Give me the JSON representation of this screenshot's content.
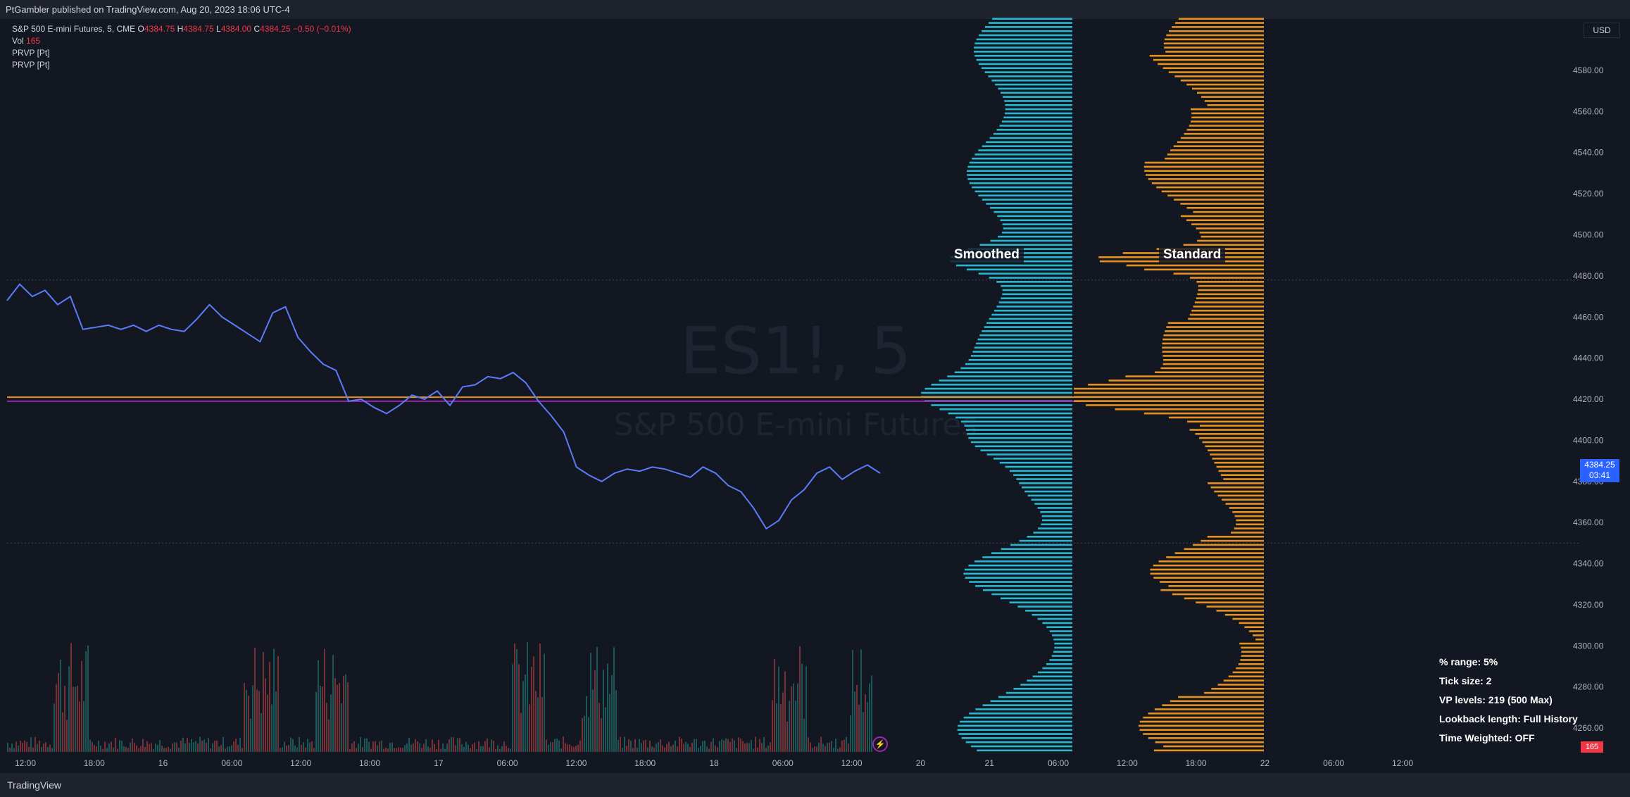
{
  "header": {
    "publisher_text": "PtGambler published on TradingView.com, Aug 20, 2023 18:06 UTC-4"
  },
  "legend": {
    "symbol_line": "S&P 500 E-mini Futures, 5, CME",
    "open_label": "O",
    "open": "4384.75",
    "high_label": "H",
    "high": "4384.75",
    "low_label": "L",
    "low": "4384.00",
    "close_label": "C",
    "close": "4384.25",
    "change": "−0.50 (−0.01%)",
    "vol_label": "Vol",
    "vol_value": "165",
    "indicator_1": "PRVP [Pt]",
    "indicator_2": "PRVP [Pt]"
  },
  "currency": "USD",
  "price_tag": {
    "price": "4384.25",
    "countdown": "03:41"
  },
  "volume_tag": "165",
  "watermark": {
    "ticker": "ES1!, 5",
    "name": "S&P 500 E-mini Futures"
  },
  "settings_box": {
    "range": "% range: 5%",
    "tick": "Tick size: 2",
    "levels": "VP levels: 219 (500 Max)",
    "lookback": "Lookback length: Full History",
    "time_weighted": "Time Weighted: OFF"
  },
  "branding": "TradingView",
  "colors": {
    "background": "#131722",
    "smoothed": "#29b6cf",
    "standard": "#e6901f",
    "price_line": "#5b7cfa",
    "poc_line": "#e6901f",
    "value_line": "#9c27b0"
  },
  "chart_data": {
    "type": "line",
    "title": "",
    "y_axis": {
      "ticks": [
        4260,
        4280,
        4300,
        4320,
        4340,
        4360,
        4380,
        4400,
        4420,
        4440,
        4460,
        4480,
        4500,
        4520,
        4540,
        4560,
        4580
      ],
      "range": [
        4247,
        4605
      ],
      "position": "right"
    },
    "x_axis": {
      "tick_labels": [
        "12:00",
        "18:00",
        "16",
        "06:00",
        "12:00",
        "18:00",
        "17",
        "06:00",
        "12:00",
        "18:00",
        "18",
        "06:00",
        "12:00",
        "20",
        "21",
        "06:00",
        "12:00",
        "18:00",
        "22",
        "06:00",
        "12:00"
      ]
    },
    "price_series": {
      "name": "",
      "points": [
        4468,
        4476,
        4470,
        4473,
        4466,
        4470,
        4454,
        4455,
        4456,
        4454,
        4456,
        4453,
        4456,
        4454,
        4453,
        4459,
        4466,
        4460,
        4456,
        4452,
        4448,
        4462,
        4465,
        4450,
        4443,
        4437,
        4434,
        4419,
        4420,
        4416,
        4413,
        4417,
        4422,
        4420,
        4424,
        4417,
        4426,
        4427,
        4431,
        4430,
        4433,
        4428,
        4419,
        4412,
        4404,
        4387,
        4383,
        4380,
        4384,
        4386,
        4385,
        4387,
        4386,
        4384,
        4382,
        4387,
        4384,
        4378,
        4375,
        4367,
        4357,
        4361,
        4371,
        4376,
        4384,
        4387,
        4381,
        4385,
        4388,
        4384
      ]
    },
    "horizontal_lines": [
      {
        "value": 4421,
        "color": "orange"
      },
      {
        "value": 4419,
        "color": "purple"
      },
      {
        "value": 4478,
        "color": "dotted"
      },
      {
        "value": 4350,
        "color": "dotted"
      }
    ],
    "volume_profiles": [
      {
        "name": "Smoothed",
        "color": "#29b6cf"
      },
      {
        "name": "Standard",
        "color": "#e6901f"
      }
    ]
  }
}
